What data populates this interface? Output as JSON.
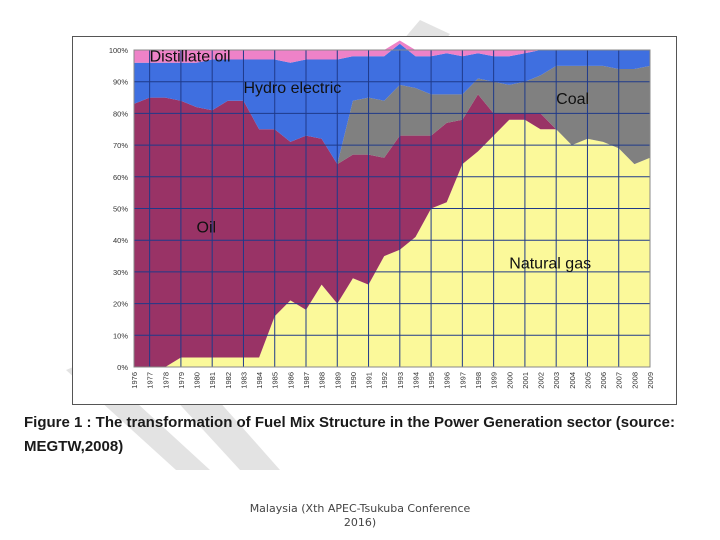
{
  "caption": {
    "line1": "Figure 1   : The transformation of Fuel Mix Structure in the Power Generation sector (source:",
    "line2": "MEGTW,2008)"
  },
  "footer": {
    "line1": "Malaysia (Xth APEC-Tsukuba Conference",
    "line2": "2016)"
  },
  "colors": {
    "natural_gas": "#fbf99a",
    "oil": "#993366",
    "coal": "#808080",
    "hydro": "#3f6fe0",
    "distillate": "#ee82c8",
    "grid": "#1f3a8a",
    "watermark": "#cfcfcf"
  },
  "chart_data": {
    "type": "area",
    "stacked": true,
    "title": "",
    "xlabel": "",
    "ylabel": "",
    "ylim": [
      0,
      100
    ],
    "yticks": [
      "0%",
      "10%",
      "20%",
      "30%",
      "40%",
      "50%",
      "60%",
      "70%",
      "80%",
      "90%",
      "100%"
    ],
    "xticks": [
      "1976",
      "1977",
      "1978",
      "1979",
      "1980",
      "1981",
      "1982",
      "1983",
      "1984",
      "1985",
      "1986",
      "1987",
      "1988",
      "1989",
      "1990",
      "1991",
      "1992",
      "1993",
      "1994",
      "1995",
      "1996",
      "1997",
      "1998",
      "1999",
      "2000",
      "2001",
      "2002",
      "2003",
      "2004",
      "2005",
      "2006",
      "2007",
      "2008",
      "2009"
    ],
    "x": [
      1976,
      1977,
      1978,
      1979,
      1980,
      1981,
      1982,
      1983,
      1984,
      1985,
      1986,
      1987,
      1988,
      1989,
      1990,
      1991,
      1992,
      1993,
      1994,
      1995,
      1996,
      1997,
      1998,
      1999,
      2000,
      2001,
      2002,
      2003,
      2004,
      2005,
      2006,
      2007,
      2008,
      2009
    ],
    "grid": true,
    "series": [
      {
        "name": "Natural gas",
        "color_key": "natural_gas",
        "values": [
          0,
          0,
          0,
          3,
          3,
          3,
          3,
          3,
          3,
          16,
          21,
          18,
          26,
          20,
          28,
          26,
          35,
          37,
          41,
          50,
          52,
          64,
          68,
          73,
          78,
          78,
          75,
          75,
          70,
          72,
          71,
          69,
          64,
          66
        ]
      },
      {
        "name": "Oil",
        "color_key": "oil",
        "values": [
          83,
          85,
          85,
          81,
          79,
          78,
          81,
          81,
          72,
          59,
          50,
          55,
          46,
          44,
          39,
          41,
          31,
          36,
          32,
          23,
          25,
          14,
          18,
          7,
          2,
          2,
          5,
          0,
          0,
          0,
          0,
          0,
          0,
          0
        ]
      },
      {
        "name": "Coal",
        "color_key": "coal",
        "values": [
          0,
          0,
          0,
          0,
          0,
          0,
          0,
          0,
          0,
          0,
          0,
          0,
          0,
          0,
          17,
          18,
          18,
          16,
          15,
          13,
          9,
          8,
          5,
          10,
          9,
          10,
          12,
          20,
          25,
          23,
          24,
          25,
          30,
          29
        ]
      },
      {
        "name": "Hydro electric",
        "color_key": "hydro",
        "values": [
          13,
          11,
          11,
          12,
          14,
          16,
          13,
          13,
          22,
          22,
          25,
          24,
          25,
          33,
          14,
          13,
          14,
          13,
          10,
          12,
          13,
          12,
          8,
          8,
          9,
          9,
          8,
          5,
          5,
          5,
          5,
          6,
          6,
          5
        ]
      },
      {
        "name": "Distillate oil",
        "color_key": "distillate",
        "values": [
          4,
          4,
          4,
          4,
          4,
          3,
          3,
          3,
          3,
          3,
          4,
          3,
          3,
          3,
          2,
          2,
          2,
          1,
          2,
          2,
          1,
          2,
          1,
          2,
          2,
          1,
          0,
          0,
          0,
          0,
          0,
          0,
          0,
          0
        ]
      }
    ],
    "labels": [
      {
        "text": "Distillate oil",
        "x": 1977.0,
        "y": 96.3
      },
      {
        "text": "Hydro electric",
        "x": 1983.0,
        "y": 86.5
      },
      {
        "text": "Coal",
        "x": 2003.0,
        "y": 83.0
      },
      {
        "text": "Oil",
        "x": 1980.0,
        "y": 42.5
      },
      {
        "text": "Natural gas",
        "x": 2000.0,
        "y": 31.0
      }
    ]
  }
}
